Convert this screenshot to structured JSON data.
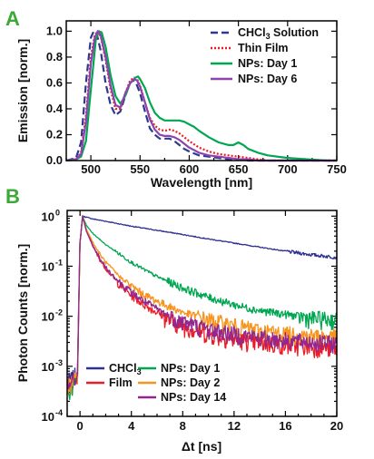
{
  "chart_data": [
    {
      "type": "line",
      "panel_label": "A",
      "xlabel": "Wavelength [nm]",
      "ylabel": "Emission [norm.]",
      "xlim": [
        475,
        750
      ],
      "ylim": [
        0,
        1.08
      ],
      "xticks": [
        "500",
        "550",
        "600",
        "650",
        "700",
        "750"
      ],
      "yticks": [
        "0.0",
        "0.2",
        "0.4",
        "0.6",
        "0.8",
        "1.0"
      ],
      "legend_position": "top-right",
      "series": [
        {
          "name_main": "CHCl",
          "name_sub": "3",
          "name_rest": " Solution",
          "color": "#2b3990",
          "dash": "8,4",
          "x": [
            475,
            485,
            490,
            495,
            500,
            503,
            506,
            510,
            515,
            520,
            525,
            530,
            535,
            540,
            543,
            546,
            550,
            555,
            560,
            565,
            570,
            575,
            580,
            585,
            590,
            595,
            600,
            610,
            620,
            630,
            640,
            650,
            660,
            670,
            680,
            700,
            720,
            740,
            750
          ],
          "y": [
            0.0,
            0.02,
            0.14,
            0.6,
            0.95,
            1.0,
            0.98,
            0.85,
            0.6,
            0.43,
            0.35,
            0.38,
            0.5,
            0.6,
            0.62,
            0.6,
            0.52,
            0.38,
            0.25,
            0.2,
            0.17,
            0.17,
            0.17,
            0.15,
            0.12,
            0.09,
            0.07,
            0.04,
            0.03,
            0.02,
            0.01,
            0.01,
            0.0,
            0.0,
            0.0,
            0.0,
            0.0,
            0.0,
            0.0
          ]
        },
        {
          "name_main": "Thin Film",
          "name_sub": "",
          "name_rest": "",
          "color": "#ed1c24",
          "dash": "2,2",
          "x": [
            475,
            485,
            490,
            495,
            500,
            504,
            507,
            510,
            515,
            520,
            525,
            530,
            535,
            540,
            544,
            547,
            550,
            555,
            560,
            565,
            570,
            575,
            580,
            585,
            590,
            595,
            600,
            610,
            620,
            630,
            640,
            650,
            660,
            670,
            680,
            700,
            720,
            740,
            750
          ],
          "y": [
            0.0,
            0.01,
            0.06,
            0.35,
            0.8,
            0.97,
            1.0,
            0.96,
            0.78,
            0.55,
            0.4,
            0.4,
            0.52,
            0.62,
            0.64,
            0.63,
            0.58,
            0.45,
            0.33,
            0.27,
            0.24,
            0.23,
            0.24,
            0.23,
            0.21,
            0.18,
            0.15,
            0.1,
            0.07,
            0.05,
            0.04,
            0.03,
            0.02,
            0.01,
            0.0,
            0.0,
            0.0,
            0.0,
            0.0
          ]
        },
        {
          "name_main": "NPs: Day 1",
          "name_sub": "",
          "name_rest": "",
          "color": "#00a651",
          "dash": "",
          "x": [
            475,
            485,
            490,
            495,
            500,
            505,
            508,
            511,
            515,
            520,
            525,
            530,
            535,
            540,
            545,
            548,
            550,
            555,
            560,
            565,
            570,
            575,
            580,
            585,
            590,
            595,
            600,
            605,
            610,
            620,
            630,
            640,
            645,
            650,
            655,
            660,
            670,
            680,
            700,
            720,
            740,
            750
          ],
          "y": [
            0.0,
            0.01,
            0.03,
            0.15,
            0.55,
            0.93,
            1.0,
            0.99,
            0.88,
            0.66,
            0.5,
            0.44,
            0.5,
            0.6,
            0.64,
            0.65,
            0.63,
            0.56,
            0.45,
            0.37,
            0.33,
            0.31,
            0.31,
            0.31,
            0.31,
            0.3,
            0.28,
            0.26,
            0.23,
            0.18,
            0.14,
            0.12,
            0.12,
            0.14,
            0.12,
            0.09,
            0.06,
            0.04,
            0.02,
            0.01,
            0.0,
            0.0
          ]
        },
        {
          "name_main": "NPs: Day 6",
          "name_sub": "",
          "name_rest": "",
          "color": "#8e44ad",
          "dash": "",
          "x": [
            475,
            485,
            490,
            495,
            500,
            504,
            507,
            510,
            515,
            520,
            525,
            530,
            535,
            540,
            544,
            547,
            550,
            555,
            560,
            565,
            570,
            575,
            580,
            585,
            590,
            595,
            600,
            610,
            620,
            630,
            640,
            650,
            660,
            670,
            680,
            700,
            720,
            740,
            750
          ],
          "y": [
            0.0,
            0.01,
            0.05,
            0.3,
            0.75,
            0.95,
            1.0,
            0.97,
            0.8,
            0.58,
            0.43,
            0.41,
            0.52,
            0.6,
            0.63,
            0.62,
            0.57,
            0.45,
            0.32,
            0.24,
            0.2,
            0.19,
            0.19,
            0.18,
            0.16,
            0.13,
            0.1,
            0.06,
            0.04,
            0.03,
            0.02,
            0.01,
            0.01,
            0.0,
            0.0,
            0.0,
            0.0,
            0.0,
            0.0
          ]
        }
      ]
    },
    {
      "type": "line",
      "panel_label": "B",
      "xlabel": "Δt [ns]",
      "ylabel": "Photon Counts [norm.]",
      "yscale": "log",
      "xlim": [
        -1,
        20
      ],
      "ylim": [
        0.0001,
        1.3
      ],
      "xticks": [
        "0",
        "4",
        "8",
        "12",
        "16",
        "20"
      ],
      "yticks": [
        {
          "base": "10",
          "exp": "-4"
        },
        {
          "base": "10",
          "exp": "-3"
        },
        {
          "base": "10",
          "exp": "-2"
        },
        {
          "base": "10",
          "exp": "-1"
        },
        {
          "base": "10",
          "exp": "0"
        }
      ],
      "legend_position": "bottom-left",
      "series": [
        {
          "name_main": "CHCl",
          "name_sub": "3",
          "name_rest": "",
          "color": "#2e3192",
          "x": [
            -1,
            -0.5,
            -0.2,
            0,
            0.2,
            1,
            2,
            4,
            6,
            8,
            10,
            12,
            14,
            16,
            18,
            20
          ],
          "y": [
            0.0005,
            0.0006,
            0.0008,
            0.3,
            1.0,
            0.88,
            0.79,
            0.63,
            0.52,
            0.43,
            0.35,
            0.29,
            0.24,
            0.2,
            0.17,
            0.15
          ]
        },
        {
          "name_main": "Film",
          "name_sub": "",
          "name_rest": "",
          "color": "#ed1c24",
          "x": [
            -1,
            -0.5,
            -0.2,
            0,
            0.2,
            0.5,
            1,
            1.5,
            2,
            3,
            4,
            5,
            6,
            7,
            8,
            10,
            12,
            14,
            16,
            18,
            20
          ],
          "y": [
            0.0004,
            0.0005,
            0.0006,
            0.3,
            1.0,
            0.5,
            0.25,
            0.14,
            0.09,
            0.045,
            0.026,
            0.017,
            0.012,
            0.0085,
            0.0065,
            0.0045,
            0.0035,
            0.003,
            0.0027,
            0.0025,
            0.0023
          ]
        },
        {
          "name_main": "NPs: Day 1",
          "name_sub": "",
          "name_rest": "",
          "color": "#00a651",
          "x": [
            -1,
            -0.5,
            -0.2,
            0,
            0.2,
            0.5,
            1,
            2,
            3,
            4,
            5,
            6,
            8,
            10,
            12,
            14,
            16,
            18,
            20
          ],
          "y": [
            0.0003,
            0.0004,
            0.0005,
            0.3,
            1.0,
            0.65,
            0.45,
            0.27,
            0.18,
            0.12,
            0.085,
            0.062,
            0.037,
            0.024,
            0.017,
            0.013,
            0.011,
            0.0092,
            0.0085
          ]
        },
        {
          "name_main": "NPs: Day 2",
          "name_sub": "",
          "name_rest": "",
          "color": "#f7941d",
          "x": [
            -1,
            -0.5,
            -0.2,
            0,
            0.2,
            0.5,
            1,
            1.5,
            2,
            3,
            4,
            5,
            6,
            8,
            10,
            12,
            14,
            16,
            18,
            20
          ],
          "y": [
            0.0004,
            0.0005,
            0.0006,
            0.3,
            1.0,
            0.55,
            0.3,
            0.18,
            0.12,
            0.065,
            0.04,
            0.027,
            0.02,
            0.012,
            0.0085,
            0.0065,
            0.0052,
            0.0045,
            0.0041,
            0.0038
          ]
        },
        {
          "name_main": "NPs: Day 14",
          "name_sub": "",
          "name_rest": "",
          "color": "#92278f",
          "x": [
            -1,
            -0.5,
            -0.2,
            0,
            0.2,
            0.5,
            1,
            1.5,
            2,
            3,
            4,
            5,
            6,
            7,
            8,
            10,
            12,
            14,
            16,
            18,
            20
          ],
          "y": [
            0.0004,
            0.0005,
            0.0006,
            0.3,
            1.0,
            0.5,
            0.26,
            0.15,
            0.095,
            0.05,
            0.03,
            0.02,
            0.014,
            0.01,
            0.008,
            0.0055,
            0.0045,
            0.0038,
            0.0034,
            0.0031,
            0.0029
          ]
        }
      ]
    }
  ]
}
